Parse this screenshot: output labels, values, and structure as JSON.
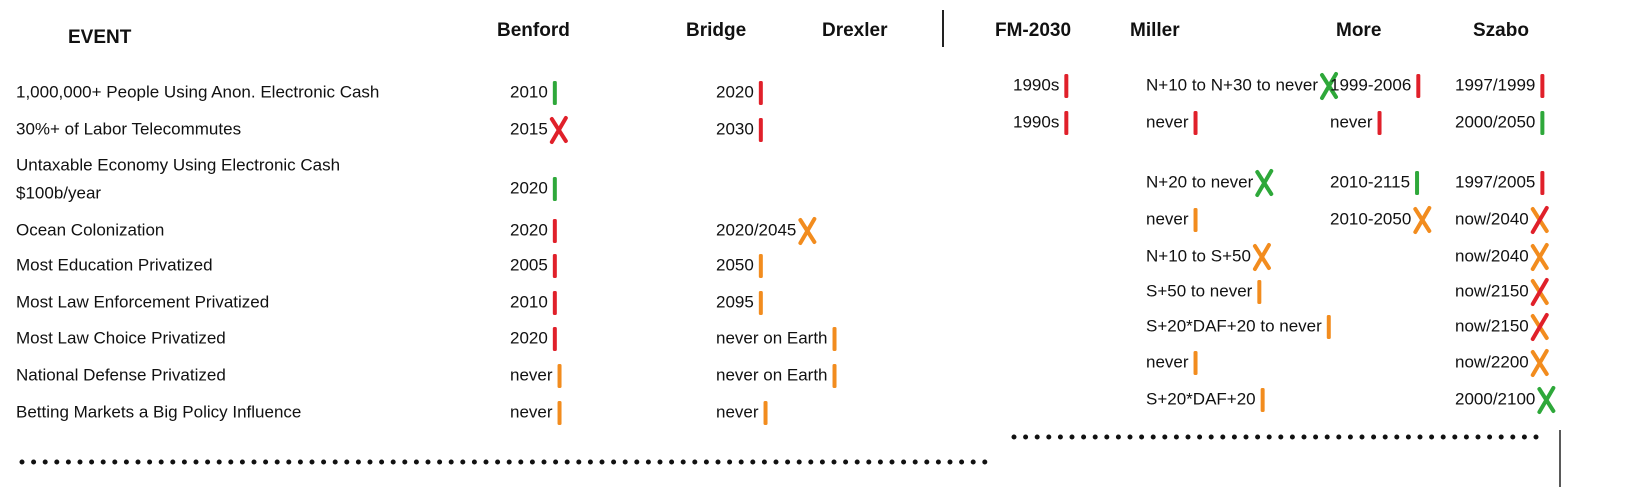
{
  "header": {
    "columns": [
      "EVENT",
      "Benford",
      "Bridge",
      "Drexler",
      "FM-2030",
      "Miller",
      "More",
      "Szabo"
    ]
  },
  "rows": [
    {
      "event": [
        "1,000,000+ People Using Anon. Electronic Cash"
      ],
      "cells": [
        "2010",
        "2020",
        null,
        "1990s",
        "N+10 to N+30 to never",
        "1999-2006",
        "1997/1999"
      ]
    },
    {
      "event": [
        "30%+ of Labor Telecommutes"
      ],
      "cells": [
        "2015",
        "2030",
        null,
        "1990s",
        "never",
        "never",
        "2000/2050"
      ]
    },
    {
      "event": [
        "Untaxable Economy Using Electronic Cash",
        "$100b/year"
      ],
      "cells": [
        "2020",
        null,
        null,
        null,
        "N+20 to never",
        "2010-2115",
        "1997/2005"
      ]
    },
    {
      "event": [
        "Ocean Colonization"
      ],
      "cells": [
        "2020",
        "2020/2045",
        null,
        null,
        "never",
        "2010-2050",
        "now/2040"
      ]
    },
    {
      "event": [
        "Most Education Privatized"
      ],
      "cells": [
        "2005",
        "2050",
        null,
        null,
        "N+10 to S+50",
        null,
        "now/2040"
      ]
    },
    {
      "event": [
        "Most Law Enforcement Privatized"
      ],
      "cells": [
        "2010",
        "2095",
        null,
        null,
        "S+50 to never",
        null,
        "now/2150"
      ]
    },
    {
      "event": [
        "Most Law Choice Privatized"
      ],
      "cells": [
        "2020",
        "never on Earth",
        null,
        null,
        "S+20*DAF+20 to never",
        null,
        "now/2150"
      ]
    },
    {
      "event": [
        "National Defense Privatized"
      ],
      "cells": [
        "never",
        "never on Earth",
        null,
        null,
        "never",
        null,
        "now/2200"
      ]
    },
    {
      "event": [
        "Betting Markets a Big Policy Influence"
      ],
      "cells": [
        "never",
        "never",
        null,
        null,
        "S+20*DAF+20",
        null,
        "2000/2100"
      ]
    }
  ]
}
